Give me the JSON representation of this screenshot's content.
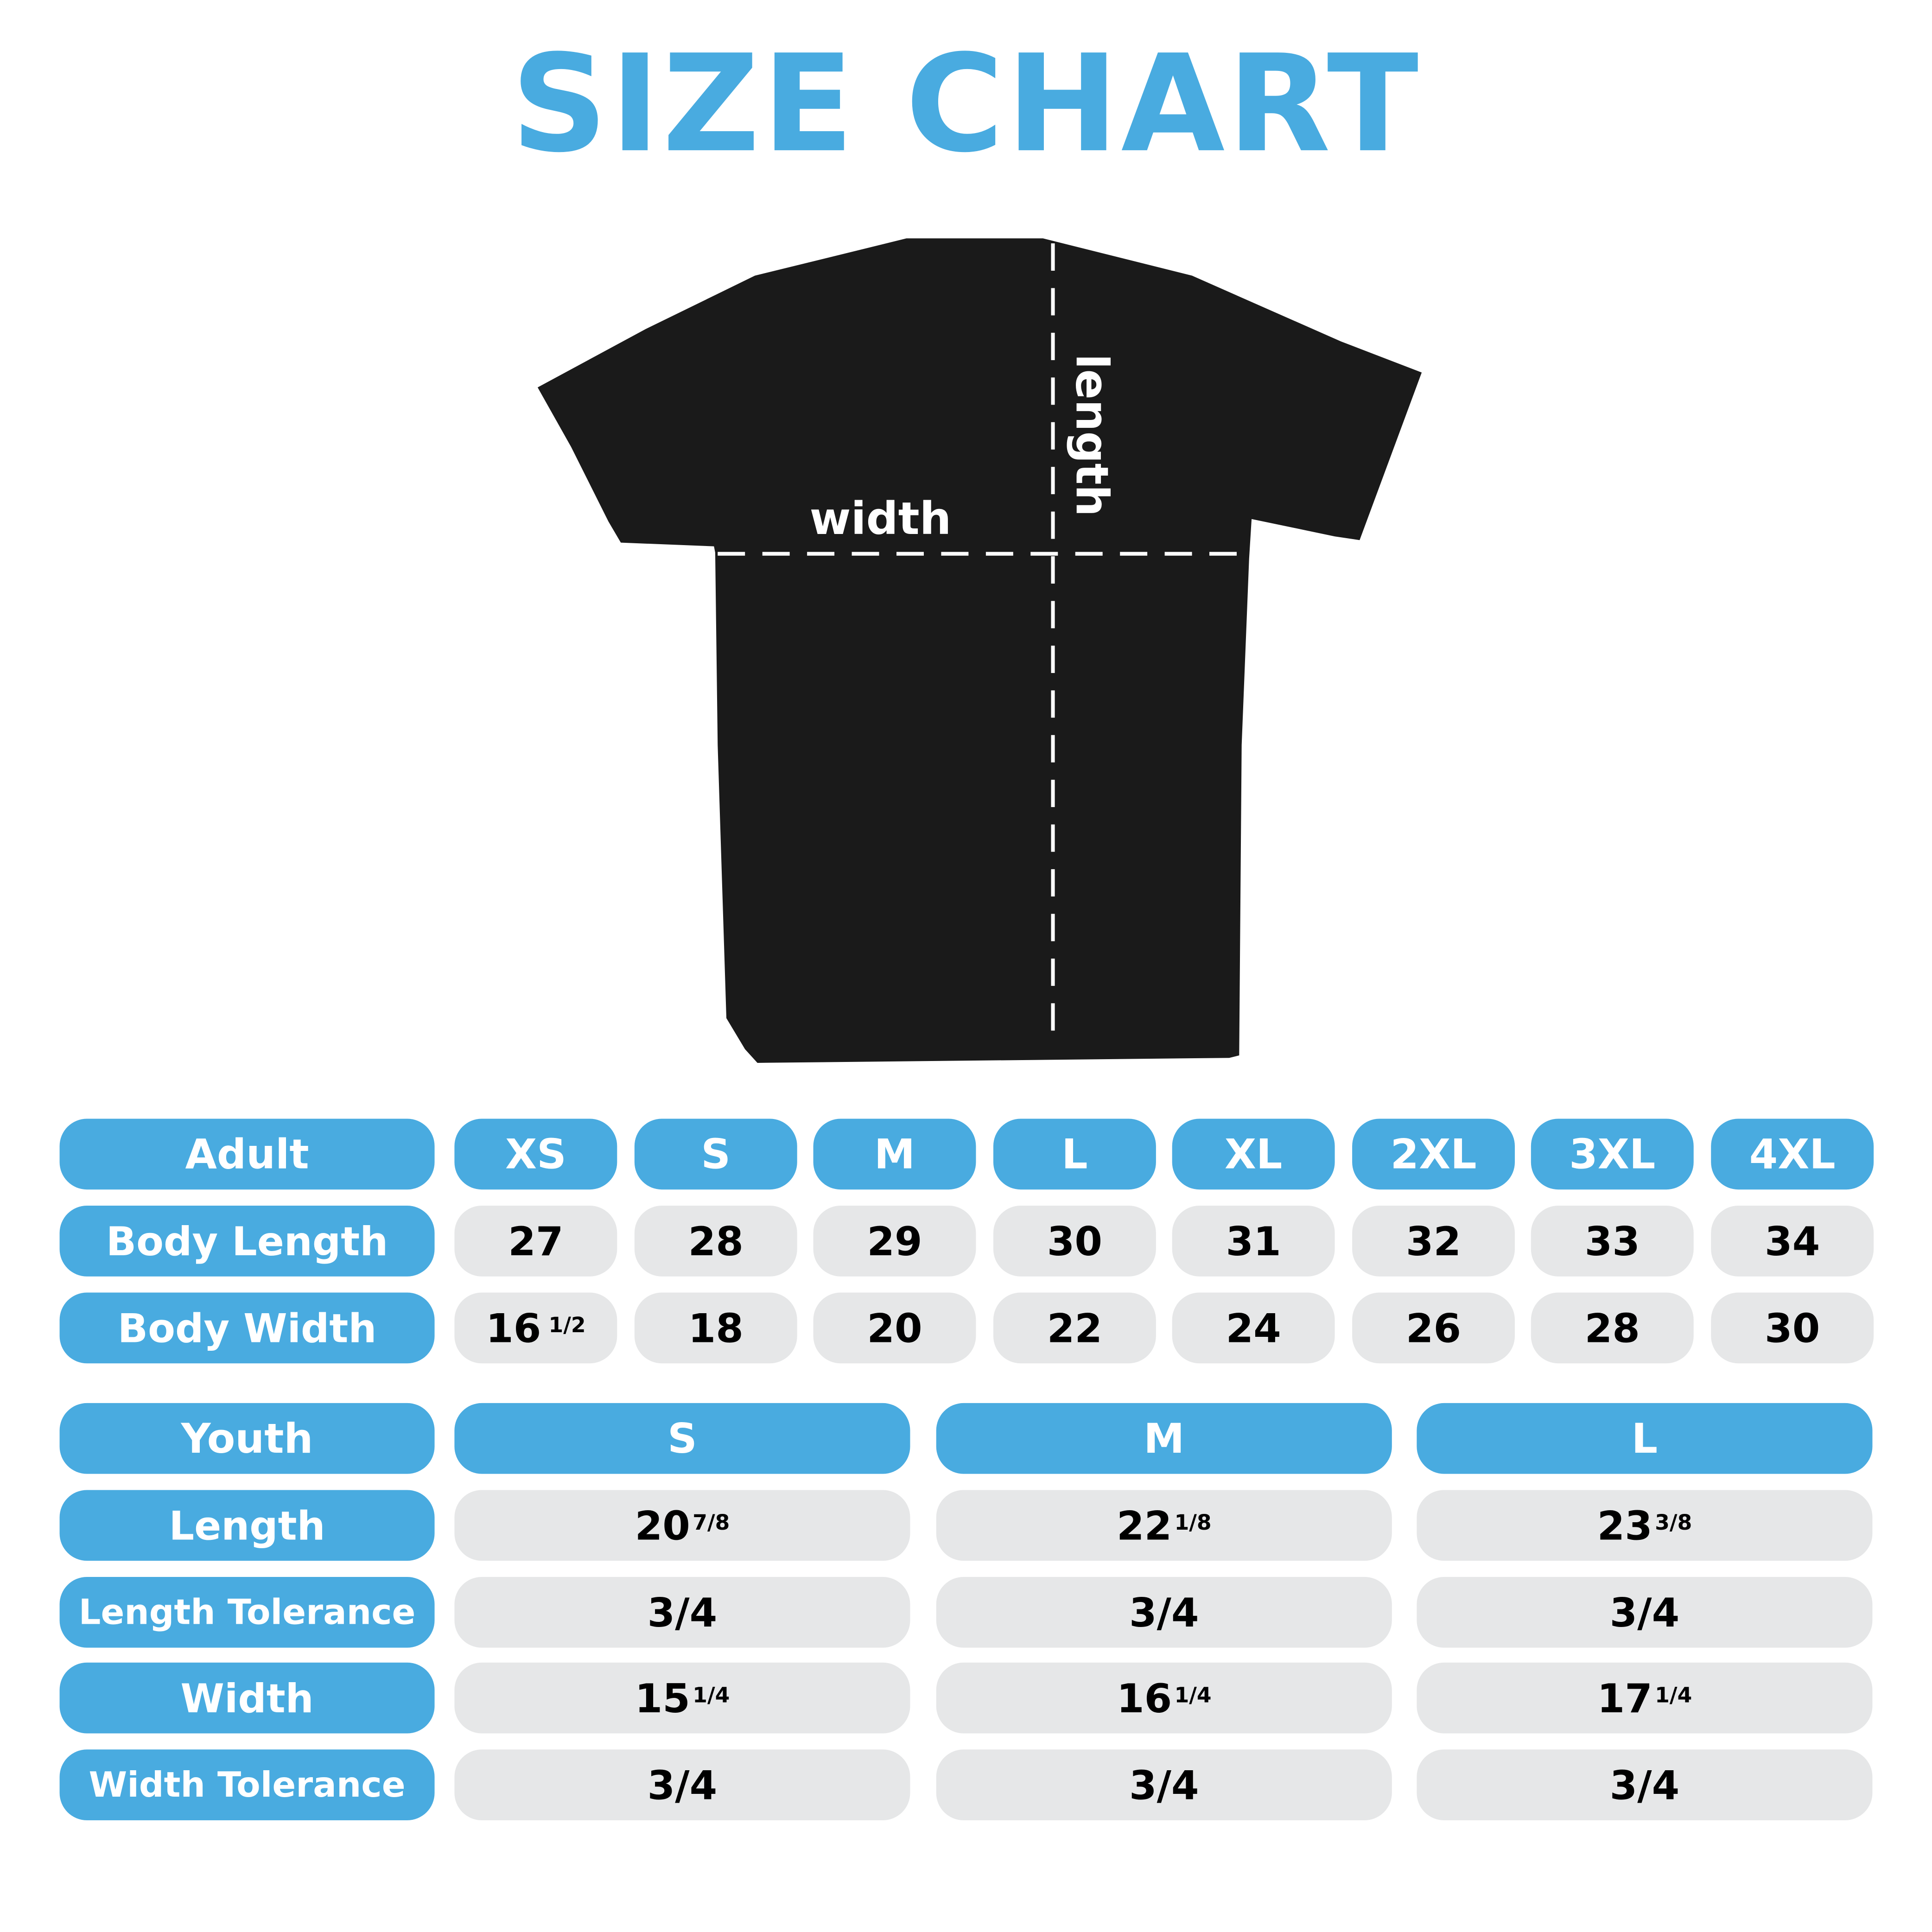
{
  "title": "SIZE CHART",
  "colors": {
    "accent": "#49ABE0",
    "cell": "#E6E7E8",
    "shirt": "#1A1A1A"
  },
  "diagram": {
    "width_label": "width",
    "length_label": "length"
  },
  "adult": {
    "header": "Adult",
    "sizes": [
      "XS",
      "S",
      "M",
      "L",
      "XL",
      "2XL",
      "3XL",
      "4XL"
    ],
    "rows": [
      {
        "label": "Body Length",
        "values": [
          {
            "whole": "27"
          },
          {
            "whole": "28"
          },
          {
            "whole": "29"
          },
          {
            "whole": "30"
          },
          {
            "whole": "31"
          },
          {
            "whole": "32"
          },
          {
            "whole": "33"
          },
          {
            "whole": "34"
          }
        ]
      },
      {
        "label": "Body Width",
        "values": [
          {
            "whole": "16",
            "frac": "1/2"
          },
          {
            "whole": "18"
          },
          {
            "whole": "20"
          },
          {
            "whole": "22"
          },
          {
            "whole": "24"
          },
          {
            "whole": "26"
          },
          {
            "whole": "28"
          },
          {
            "whole": "30"
          }
        ]
      }
    ]
  },
  "youth": {
    "header": "Youth",
    "sizes": [
      "S",
      "M",
      "L"
    ],
    "rows": [
      {
        "label": "Length",
        "values": [
          {
            "whole": "20",
            "frac": "7/8"
          },
          {
            "whole": "22",
            "frac": "1/8"
          },
          {
            "whole": "23",
            "frac": "3/8"
          }
        ]
      },
      {
        "label": "Length Tolerance",
        "values": [
          {
            "whole": "3/4"
          },
          {
            "whole": "3/4"
          },
          {
            "whole": "3/4"
          }
        ]
      },
      {
        "label": "Width",
        "values": [
          {
            "whole": "15",
            "frac": "1/4"
          },
          {
            "whole": "16",
            "frac": "1/4"
          },
          {
            "whole": "17",
            "frac": "1/4"
          }
        ]
      },
      {
        "label": "Width Tolerance",
        "values": [
          {
            "whole": "3/4"
          },
          {
            "whole": "3/4"
          },
          {
            "whole": "3/4"
          }
        ]
      }
    ]
  }
}
